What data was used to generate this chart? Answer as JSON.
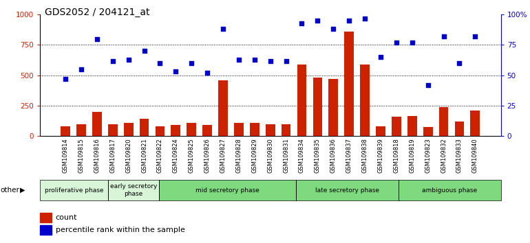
{
  "title": "GDS2052 / 204121_at",
  "samples": [
    "GSM109814",
    "GSM109815",
    "GSM109816",
    "GSM109817",
    "GSM109820",
    "GSM109821",
    "GSM109822",
    "GSM109824",
    "GSM109825",
    "GSM109826",
    "GSM109827",
    "GSM109828",
    "GSM109829",
    "GSM109830",
    "GSM109831",
    "GSM109834",
    "GSM109835",
    "GSM109836",
    "GSM109837",
    "GSM109838",
    "GSM109839",
    "GSM109818",
    "GSM109819",
    "GSM109823",
    "GSM109832",
    "GSM109833",
    "GSM109840"
  ],
  "counts": [
    80,
    100,
    200,
    100,
    110,
    140,
    80,
    90,
    110,
    90,
    460,
    110,
    110,
    100,
    100,
    590,
    480,
    470,
    860,
    590,
    80,
    160,
    165,
    75,
    240,
    120,
    210
  ],
  "percentile": [
    47,
    55,
    80,
    62,
    63,
    70,
    60,
    53,
    60,
    52,
    88,
    63,
    63,
    62,
    62,
    93,
    95,
    88,
    95,
    97,
    65,
    77,
    77,
    42,
    82,
    60,
    82
  ],
  "phases": [
    {
      "label": "proliferative phase",
      "start": 0,
      "end": 4,
      "color": "#d8f5d8"
    },
    {
      "label": "early secretory\nphase",
      "start": 4,
      "end": 7,
      "color": "#d8f5d8"
    },
    {
      "label": "mid secretory phase",
      "start": 7,
      "end": 15,
      "color": "#7fda7f"
    },
    {
      "label": "late secretory phase",
      "start": 15,
      "end": 21,
      "color": "#7fda7f"
    },
    {
      "label": "ambiguous phase",
      "start": 21,
      "end": 27,
      "color": "#7fda7f"
    }
  ],
  "phase_dividers": [
    4,
    7,
    15,
    21
  ],
  "bar_color": "#cc2200",
  "dot_color": "#0000cc",
  "ylim_left": [
    0,
    1000
  ],
  "ylim_right": [
    0,
    100
  ],
  "yticks_left": [
    0,
    250,
    500,
    750,
    1000
  ],
  "yticks_right": [
    0,
    25,
    50,
    75,
    100
  ],
  "background_color": "#ffffff",
  "other_label": "other",
  "legend_count_label": "count",
  "legend_pct_label": "percentile rank within the sample",
  "tick_bg_color": "#d0d0d0"
}
